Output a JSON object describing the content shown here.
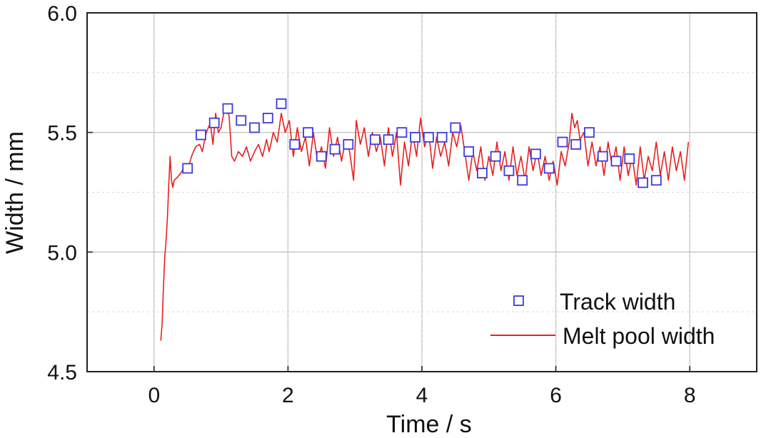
{
  "chart_data": {
    "type": "line",
    "xlabel": "Time / s",
    "ylabel": "Width / mm",
    "xlim": [
      -1,
      9
    ],
    "ylim": [
      4.5,
      6.0
    ],
    "xticks": [
      "0",
      "2",
      "4",
      "6",
      "8"
    ],
    "yticks": [
      "4.5",
      "5.0",
      "5.5",
      "6.0"
    ],
    "grid": true,
    "legend_position": "bottom-right",
    "series": [
      {
        "name": "Track width",
        "kind": "markers",
        "marker": "open-square",
        "color": "#3a3adf",
        "points": [
          [
            0.5,
            5.35
          ],
          [
            0.7,
            5.49
          ],
          [
            0.9,
            5.54
          ],
          [
            1.1,
            5.6
          ],
          [
            1.3,
            5.55
          ],
          [
            1.5,
            5.52
          ],
          [
            1.7,
            5.56
          ],
          [
            1.9,
            5.62
          ],
          [
            2.1,
            5.45
          ],
          [
            2.3,
            5.5
          ],
          [
            2.5,
            5.4
          ],
          [
            2.7,
            5.43
          ],
          [
            2.9,
            5.45
          ],
          [
            3.3,
            5.47
          ],
          [
            3.5,
            5.47
          ],
          [
            3.7,
            5.5
          ],
          [
            3.9,
            5.48
          ],
          [
            4.1,
            5.48
          ],
          [
            4.3,
            5.48
          ],
          [
            4.5,
            5.52
          ],
          [
            4.7,
            5.42
          ],
          [
            4.9,
            5.33
          ],
          [
            5.1,
            5.4
          ],
          [
            5.3,
            5.34
          ],
          [
            5.5,
            5.3
          ],
          [
            5.7,
            5.41
          ],
          [
            5.9,
            5.35
          ],
          [
            6.1,
            5.46
          ],
          [
            6.3,
            5.45
          ],
          [
            6.5,
            5.5
          ],
          [
            6.7,
            5.4
          ],
          [
            6.9,
            5.38
          ],
          [
            7.1,
            5.39
          ],
          [
            7.3,
            5.29
          ],
          [
            7.5,
            5.3
          ]
        ]
      },
      {
        "name": "Melt pool width",
        "kind": "line",
        "color": "#e8201e",
        "points": [
          [
            0.1,
            4.63
          ],
          [
            0.12,
            4.7
          ],
          [
            0.14,
            4.85
          ],
          [
            0.16,
            4.98
          ],
          [
            0.18,
            5.05
          ],
          [
            0.2,
            5.15
          ],
          [
            0.22,
            5.28
          ],
          [
            0.24,
            5.4
          ],
          [
            0.26,
            5.3
          ],
          [
            0.28,
            5.27
          ],
          [
            0.3,
            5.3
          ],
          [
            0.34,
            5.31
          ],
          [
            0.4,
            5.33
          ],
          [
            0.46,
            5.36
          ],
          [
            0.5,
            5.34
          ],
          [
            0.56,
            5.4
          ],
          [
            0.62,
            5.44
          ],
          [
            0.68,
            5.45
          ],
          [
            0.72,
            5.42
          ],
          [
            0.78,
            5.5
          ],
          [
            0.84,
            5.54
          ],
          [
            0.88,
            5.45
          ],
          [
            0.92,
            5.58
          ],
          [
            0.96,
            5.5
          ],
          [
            1.0,
            5.52
          ],
          [
            1.04,
            5.58
          ],
          [
            1.08,
            5.6
          ],
          [
            1.12,
            5.57
          ],
          [
            1.16,
            5.4
          ],
          [
            1.2,
            5.38
          ],
          [
            1.26,
            5.42
          ],
          [
            1.32,
            5.4
          ],
          [
            1.38,
            5.44
          ],
          [
            1.44,
            5.38
          ],
          [
            1.5,
            5.42
          ],
          [
            1.56,
            5.45
          ],
          [
            1.62,
            5.4
          ],
          [
            1.68,
            5.47
          ],
          [
            1.72,
            5.42
          ],
          [
            1.78,
            5.5
          ],
          [
            1.84,
            5.46
          ],
          [
            1.9,
            5.58
          ],
          [
            1.96,
            5.5
          ],
          [
            2.02,
            5.55
          ],
          [
            2.08,
            5.4
          ],
          [
            2.14,
            5.52
          ],
          [
            2.2,
            5.42
          ],
          [
            2.26,
            5.48
          ],
          [
            2.32,
            5.36
          ],
          [
            2.38,
            5.5
          ],
          [
            2.44,
            5.38
          ],
          [
            2.5,
            5.44
          ],
          [
            2.56,
            5.35
          ],
          [
            2.62,
            5.52
          ],
          [
            2.68,
            5.4
          ],
          [
            2.74,
            5.48
          ],
          [
            2.8,
            5.38
          ],
          [
            2.86,
            5.47
          ],
          [
            2.92,
            5.42
          ],
          [
            2.98,
            5.3
          ],
          [
            3.02,
            5.55
          ],
          [
            3.08,
            5.45
          ],
          [
            3.14,
            5.52
          ],
          [
            3.2,
            5.4
          ],
          [
            3.26,
            5.5
          ],
          [
            3.32,
            5.42
          ],
          [
            3.38,
            5.48
          ],
          [
            3.44,
            5.36
          ],
          [
            3.5,
            5.52
          ],
          [
            3.56,
            5.4
          ],
          [
            3.62,
            5.5
          ],
          [
            3.68,
            5.28
          ],
          [
            3.74,
            5.46
          ],
          [
            3.8,
            5.36
          ],
          [
            3.86,
            5.5
          ],
          [
            3.92,
            5.4
          ],
          [
            3.98,
            5.56
          ],
          [
            4.04,
            5.44
          ],
          [
            4.1,
            5.5
          ],
          [
            4.16,
            5.35
          ],
          [
            4.22,
            5.48
          ],
          [
            4.28,
            5.4
          ],
          [
            4.34,
            5.46
          ],
          [
            4.4,
            5.36
          ],
          [
            4.46,
            5.5
          ],
          [
            4.52,
            5.44
          ],
          [
            4.58,
            5.53
          ],
          [
            4.64,
            5.42
          ],
          [
            4.7,
            5.3
          ],
          [
            4.76,
            5.42
          ],
          [
            4.82,
            5.34
          ],
          [
            4.88,
            5.44
          ],
          [
            4.94,
            5.3
          ],
          [
            5.0,
            5.4
          ],
          [
            5.06,
            5.32
          ],
          [
            5.12,
            5.46
          ],
          [
            5.18,
            5.34
          ],
          [
            5.24,
            5.42
          ],
          [
            5.3,
            5.3
          ],
          [
            5.36,
            5.44
          ],
          [
            5.42,
            5.32
          ],
          [
            5.48,
            5.4
          ],
          [
            5.54,
            5.3
          ],
          [
            5.6,
            5.44
          ],
          [
            5.66,
            5.34
          ],
          [
            5.72,
            5.42
          ],
          [
            5.78,
            5.32
          ],
          [
            5.84,
            5.4
          ],
          [
            5.9,
            5.3
          ],
          [
            5.96,
            5.38
          ],
          [
            6.02,
            5.28
          ],
          [
            6.08,
            5.42
          ],
          [
            6.14,
            5.36
          ],
          [
            6.2,
            5.46
          ],
          [
            6.24,
            5.58
          ],
          [
            6.28,
            5.52
          ],
          [
            6.32,
            5.55
          ],
          [
            6.36,
            5.47
          ],
          [
            6.42,
            5.5
          ],
          [
            6.48,
            5.36
          ],
          [
            6.54,
            5.46
          ],
          [
            6.6,
            5.36
          ],
          [
            6.66,
            5.44
          ],
          [
            6.72,
            5.32
          ],
          [
            6.78,
            5.46
          ],
          [
            6.84,
            5.36
          ],
          [
            6.9,
            5.44
          ],
          [
            6.96,
            5.3
          ],
          [
            7.02,
            5.44
          ],
          [
            7.08,
            5.32
          ],
          [
            7.14,
            5.4
          ],
          [
            7.2,
            5.28
          ],
          [
            7.26,
            5.44
          ],
          [
            7.32,
            5.3
          ],
          [
            7.38,
            5.4
          ],
          [
            7.44,
            5.34
          ],
          [
            7.5,
            5.46
          ],
          [
            7.56,
            5.32
          ],
          [
            7.62,
            5.42
          ],
          [
            7.68,
            5.3
          ],
          [
            7.74,
            5.44
          ],
          [
            7.8,
            5.34
          ],
          [
            7.86,
            5.42
          ],
          [
            7.92,
            5.3
          ],
          [
            7.98,
            5.46
          ]
        ]
      }
    ]
  }
}
